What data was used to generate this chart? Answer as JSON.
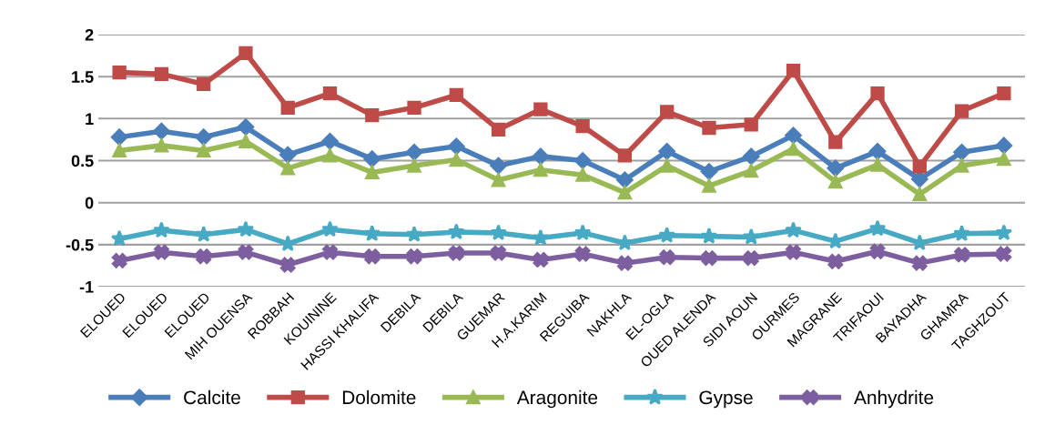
{
  "chart_data": {
    "type": "line",
    "categories": [
      "ELOUED",
      "ELOUED",
      "ELOUED",
      "MIH OUENSA",
      "ROBBAH",
      "KOUININE",
      "HASSI KHALIFA",
      "DEBILA",
      "DEBILA",
      "GUEMAR",
      "H.A.KARIM",
      "REGUIBA",
      "NAKHLA",
      "EL-OGLA",
      "OUED ALENDA",
      "SIDI AOUN",
      "OURMES",
      "MAGRANE",
      "TRIFAOUI",
      "BAYADHA",
      "GHAMRA",
      "TAGHZOUT"
    ],
    "series": [
      {
        "name": "Calcite",
        "color": "#4a7ebb",
        "marker": "diamond",
        "values": [
          0.78,
          0.85,
          0.78,
          0.9,
          0.57,
          0.73,
          0.52,
          0.6,
          0.67,
          0.44,
          0.55,
          0.5,
          0.27,
          0.61,
          0.37,
          0.55,
          0.8,
          0.41,
          0.61,
          0.28,
          0.6,
          0.68
        ]
      },
      {
        "name": "Dolomite",
        "color": "#be4b48",
        "marker": "square",
        "values": [
          1.55,
          1.53,
          1.41,
          1.78,
          1.13,
          1.3,
          1.04,
          1.13,
          1.28,
          0.87,
          1.11,
          0.91,
          0.56,
          1.08,
          0.89,
          0.93,
          1.57,
          0.72,
          1.3,
          0.43,
          1.09,
          1.3
        ]
      },
      {
        "name": "Aragonite",
        "color": "#98b954",
        "marker": "triangle",
        "values": [
          0.62,
          0.68,
          0.62,
          0.73,
          0.41,
          0.56,
          0.36,
          0.44,
          0.51,
          0.27,
          0.39,
          0.33,
          0.12,
          0.44,
          0.2,
          0.38,
          0.64,
          0.25,
          0.45,
          0.1,
          0.44,
          0.52
        ]
      },
      {
        "name": "Gypse",
        "color": "#46aac5",
        "marker": "star",
        "values": [
          -0.43,
          -0.33,
          -0.38,
          -0.32,
          -0.49,
          -0.32,
          -0.37,
          -0.38,
          -0.35,
          -0.36,
          -0.42,
          -0.36,
          -0.48,
          -0.39,
          -0.4,
          -0.41,
          -0.33,
          -0.46,
          -0.31,
          -0.48,
          -0.37,
          -0.36
        ]
      },
      {
        "name": "Anhydrite",
        "color": "#7d5fa0",
        "marker": "cross",
        "values": [
          -0.69,
          -0.59,
          -0.64,
          -0.59,
          -0.74,
          -0.59,
          -0.64,
          -0.64,
          -0.6,
          -0.6,
          -0.68,
          -0.61,
          -0.72,
          -0.65,
          -0.66,
          -0.66,
          -0.59,
          -0.7,
          -0.58,
          -0.72,
          -0.62,
          -0.61
        ]
      }
    ],
    "ylim": [
      -1,
      2
    ],
    "yticks": [
      -1,
      -0.5,
      0,
      0.5,
      1,
      1.5,
      2
    ],
    "grid": "y",
    "legend": "bottom",
    "line_style": "solid"
  }
}
